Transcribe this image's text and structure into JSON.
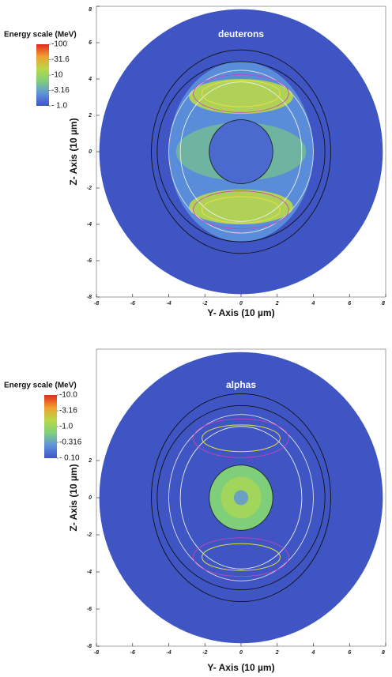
{
  "chart_data": [
    {
      "type": "heatmap",
      "title": "deuterons",
      "xlabel": "Y- Axis (10 µm)",
      "ylabel": "Z- Axis (10 µm)",
      "xlim": [
        -8,
        8
      ],
      "ylim": [
        -8,
        8
      ],
      "xticks": [
        -8,
        -6,
        -4,
        -2,
        0,
        2,
        4,
        6,
        8
      ],
      "yticks": [
        -8,
        -6,
        -4,
        -2,
        0,
        2,
        4,
        6,
        8
      ],
      "colorbar_title": "Energy scale (MeV)",
      "clim": [
        1.0,
        100
      ],
      "colorbar_scale": "log",
      "colorbar_ticks": [
        {
          "value": 100,
          "label": "-100"
        },
        {
          "value": 31.6,
          "label": "-31.6"
        },
        {
          "value": 10,
          "label": "-10"
        },
        {
          "value": 3.16,
          "label": "-3.16"
        },
        {
          "value": 1.0,
          "label": "- 1.0"
        }
      ],
      "colormap": [
        "#3f55c4",
        "#5c93dc",
        "#7fcf7a",
        "#b8d848",
        "#f0a030",
        "#e02a20"
      ],
      "background": "#3f55c4",
      "pattern": "shell"
    },
    {
      "type": "heatmap",
      "title": "alphas",
      "xlabel": "Y- Axis (10 µm)",
      "ylabel": "Z- Axis (10 µm)",
      "xlim": [
        -8,
        8
      ],
      "ylim": [
        -8,
        8
      ],
      "xticks": [
        -8,
        -6,
        -4,
        -2,
        0,
        2,
        4,
        6,
        8
      ],
      "yticks": [
        -8,
        -6,
        -4,
        -2,
        0,
        2
      ],
      "colorbar_title": "Energy scale (MeV)",
      "clim": [
        0.1,
        10.0
      ],
      "colorbar_scale": "log",
      "colorbar_ticks": [
        {
          "value": 10.0,
          "label": "-10.0"
        },
        {
          "value": 3.16,
          "label": "-3.16"
        },
        {
          "value": 1.0,
          "label": "-1.0"
        },
        {
          "value": 0.316,
          "label": "-0.316"
        },
        {
          "value": 0.1,
          "label": "- 0.10"
        }
      ],
      "colormap": [
        "#3f55c4",
        "#5c93dc",
        "#7fcf7a",
        "#b8d848",
        "#f0a030",
        "#e02a20"
      ],
      "background": "#3f55c4",
      "pattern": "core"
    }
  ]
}
